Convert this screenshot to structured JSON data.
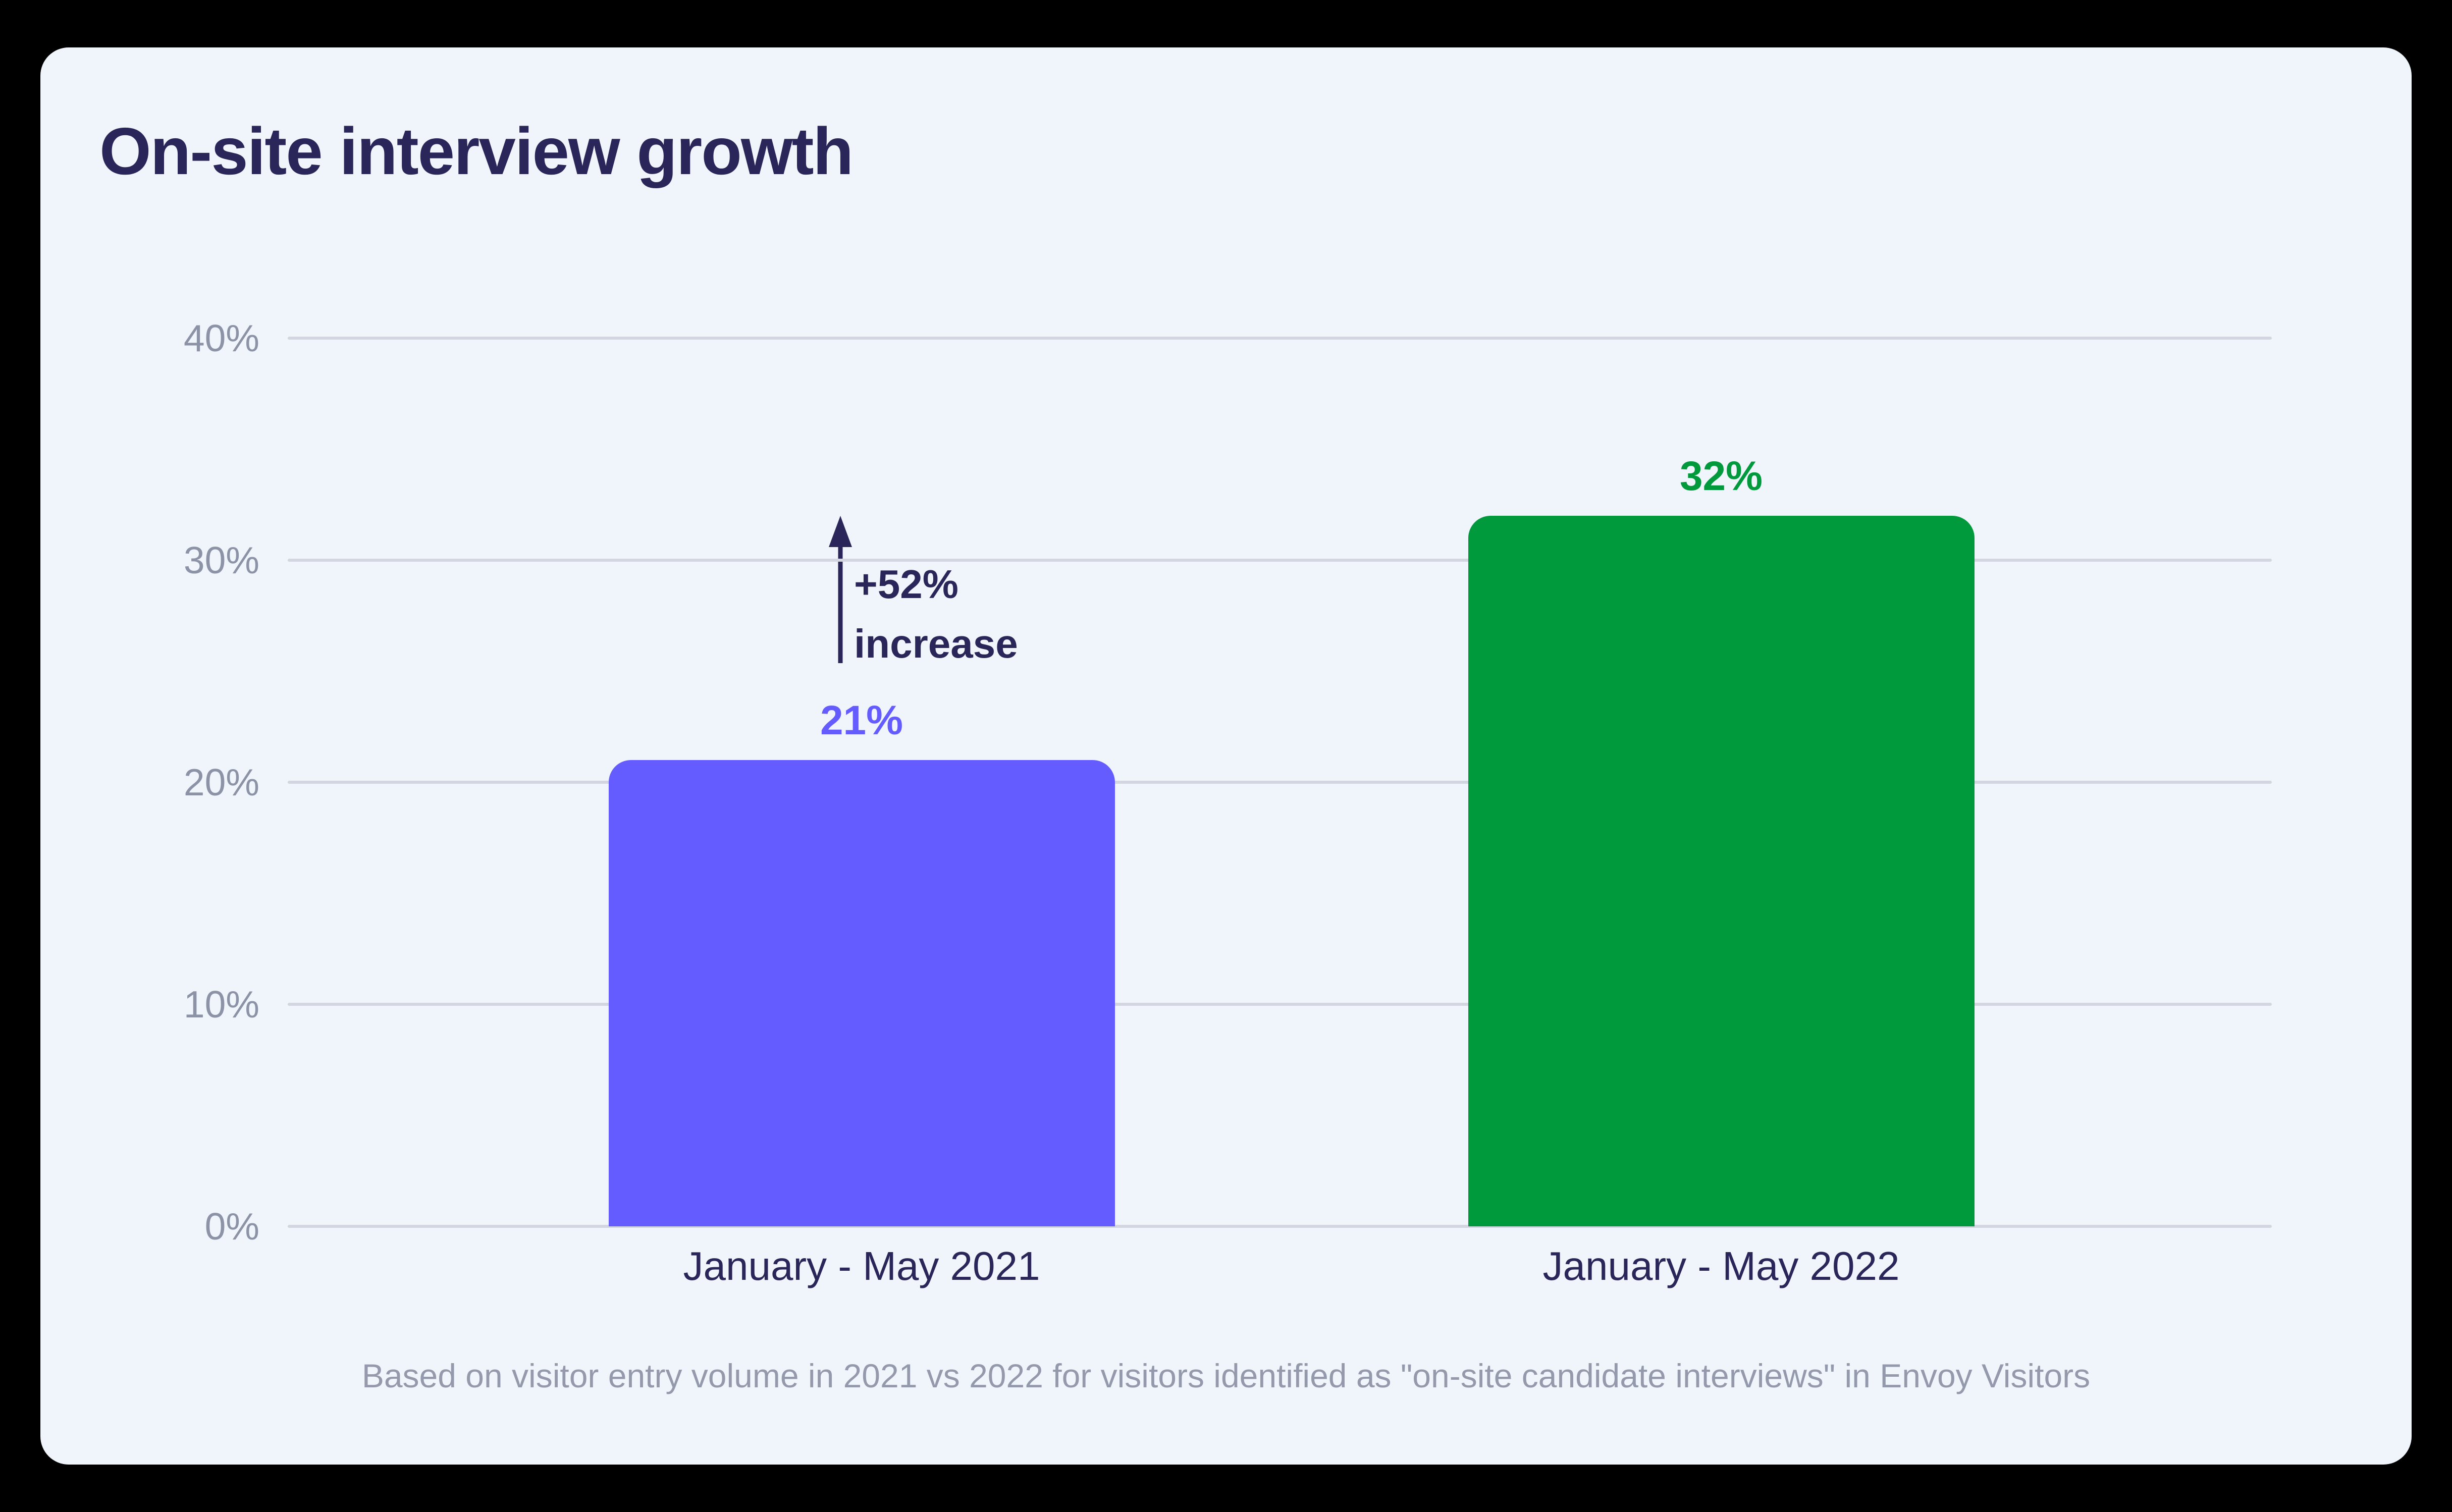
{
  "chart_data": {
    "type": "bar",
    "title": "On-site interview growth",
    "categories": [
      "January - May 2021",
      "January - May 2022"
    ],
    "values": [
      21,
      32
    ],
    "value_labels": [
      "21%",
      "32%"
    ],
    "bar_colors": [
      "#655CFF",
      "#009A3C"
    ],
    "xlabel": "",
    "ylabel": "",
    "ylim": [
      0,
      40
    ],
    "yticks": [
      0,
      10,
      20,
      30,
      40
    ],
    "ytick_labels": [
      "0%",
      "10%",
      "20%",
      "30%",
      "40%"
    ],
    "grid": "horizontal gridlines at each 10% tick",
    "legend": "none",
    "annotation": {
      "text_lines": [
        "+52%",
        "increase"
      ],
      "arrow_direction": "up"
    },
    "caption": "Based on visitor entry volume in 2021 vs 2022 for visitors identified as \"on-site candidate interviews\" in Envoy Visitors"
  },
  "colors": {
    "canvas_background": "#000000",
    "card_background": "#F0F4FB",
    "title_text": "#2B265A",
    "axis_label_text": "#8D93A6",
    "gridline": "#D3D6E1",
    "bar_2021": "#655CFF",
    "bar_2022": "#009A3C",
    "annotation_text": "#2B265A",
    "caption_text": "#9499AB"
  }
}
